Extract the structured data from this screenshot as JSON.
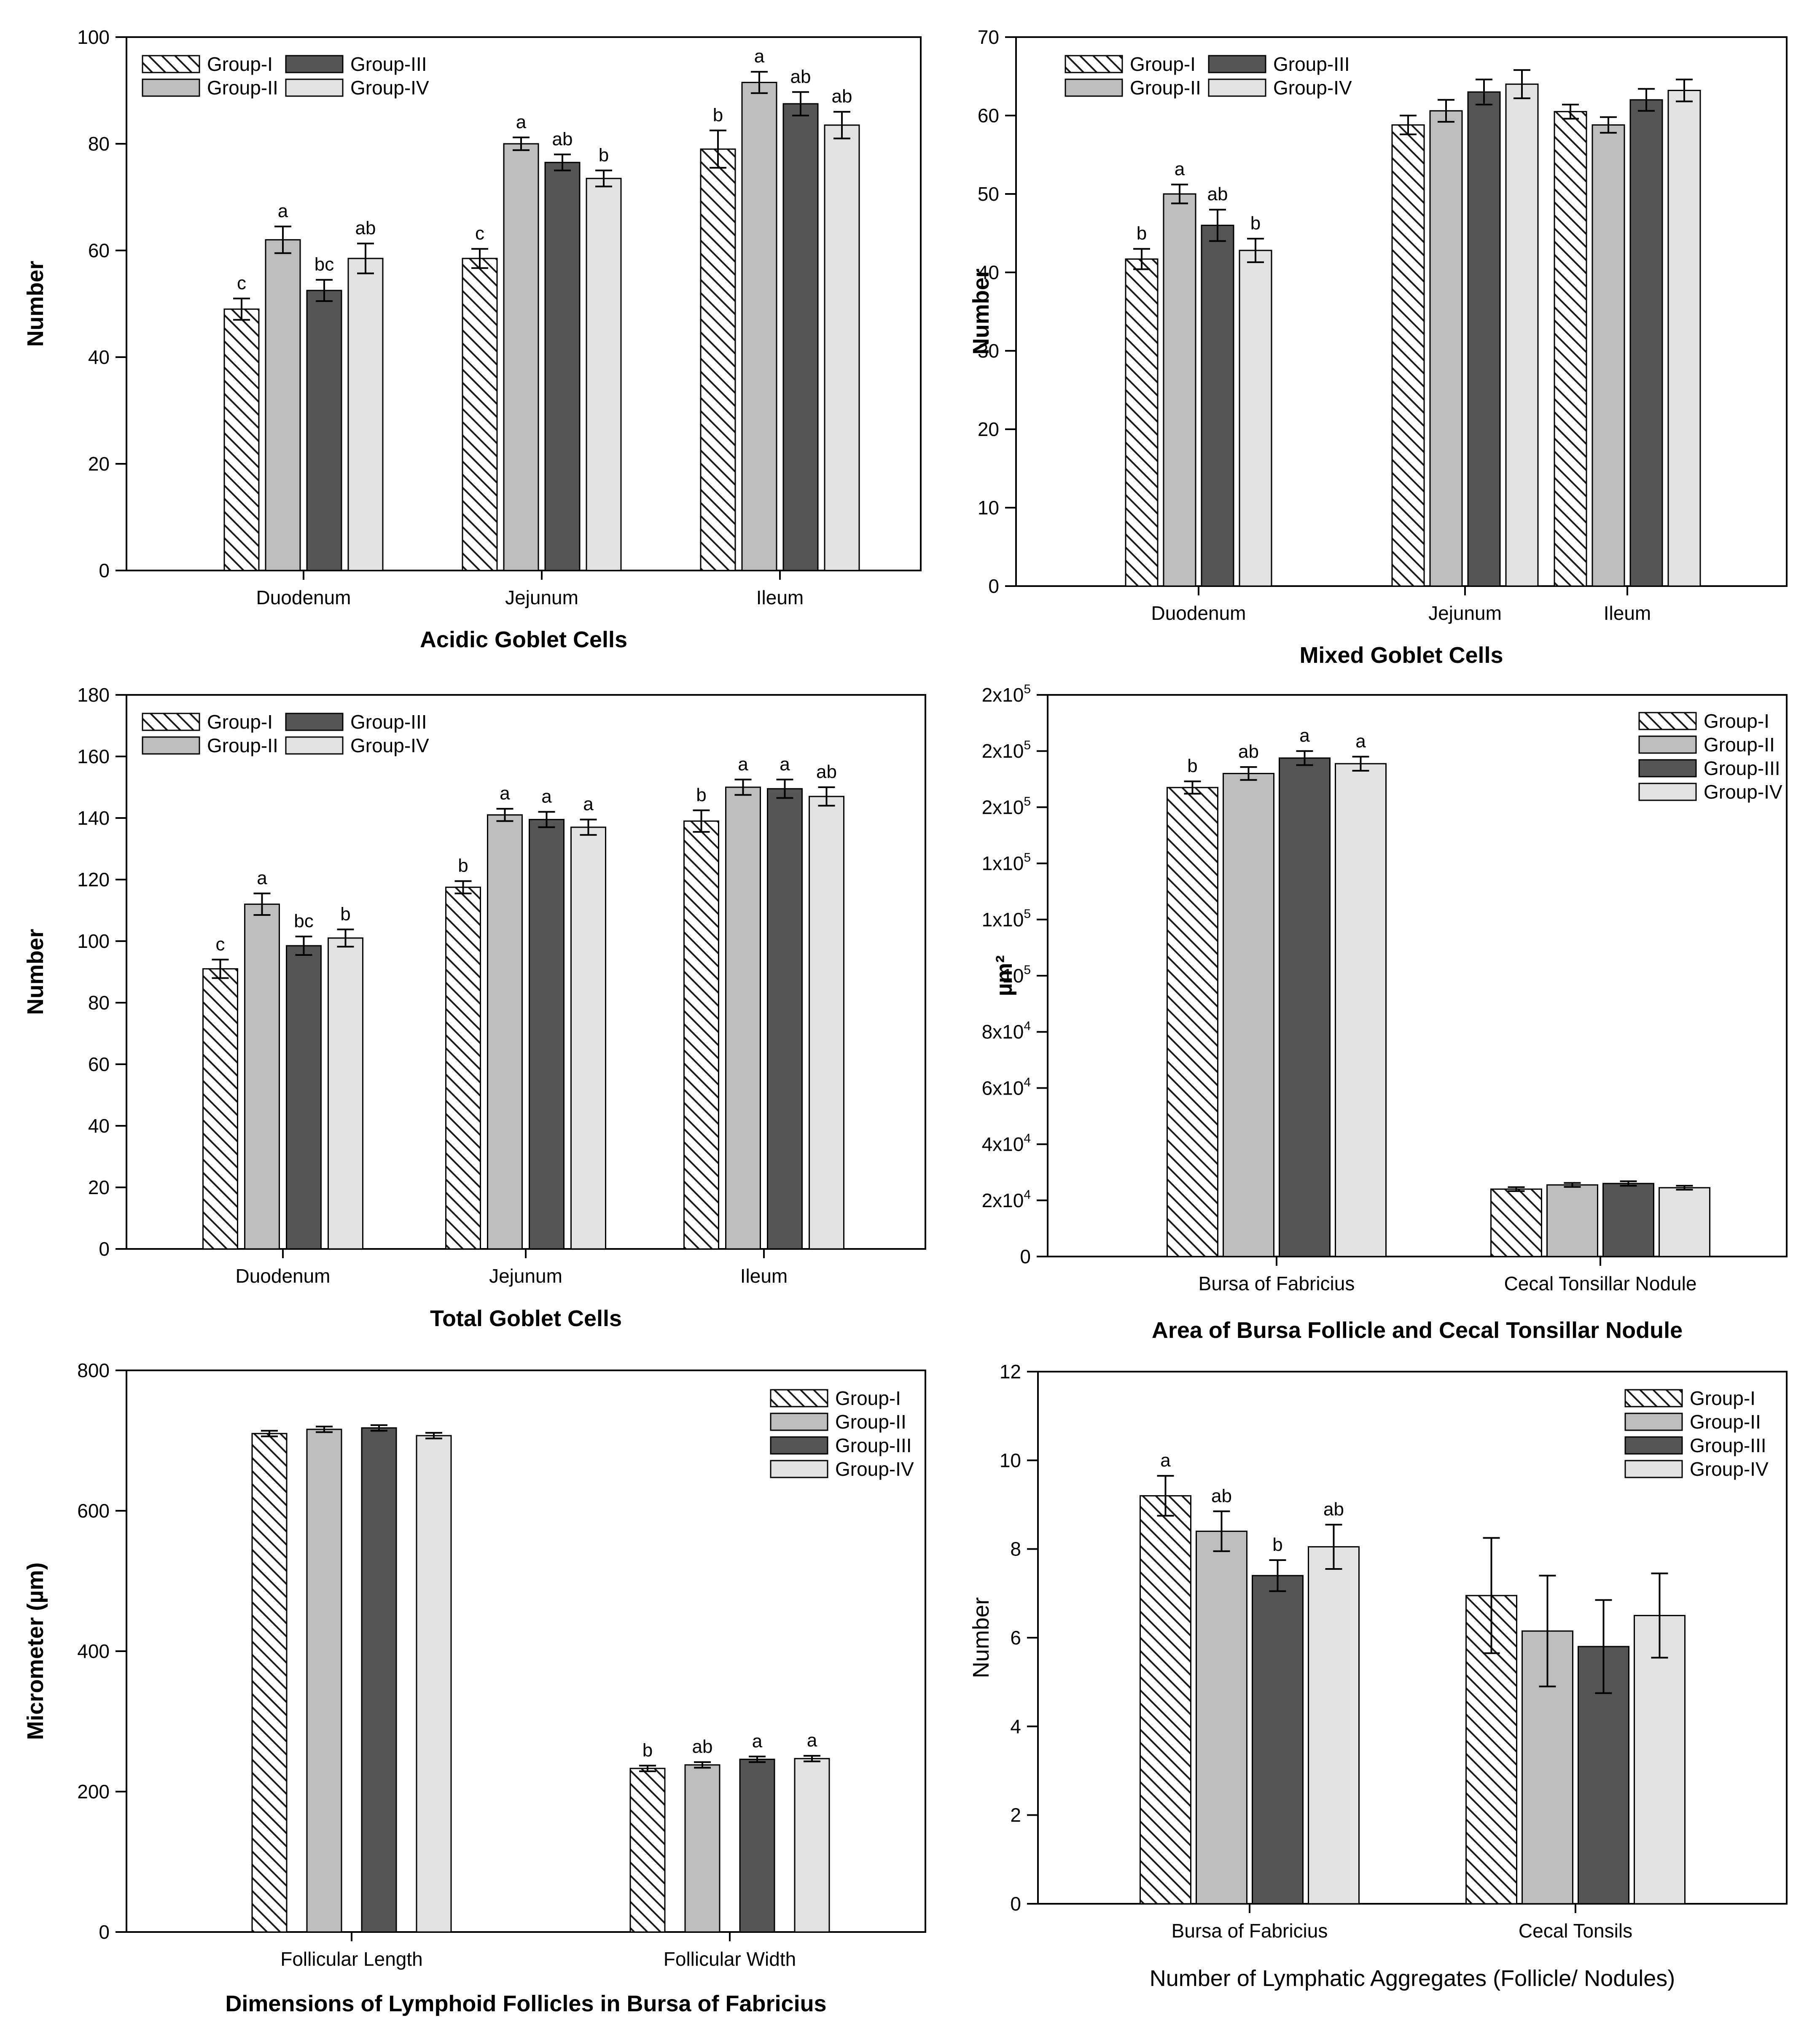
{
  "colors": {
    "group1_pattern_fg": "#1a1a1a",
    "group1_pattern_bg": "#ffffff",
    "group2": "#bdbdbd",
    "group3": "#555555",
    "group4": "#e2e2e2",
    "axis": "#000000"
  },
  "chart_data": [
    {
      "type": "bar",
      "title": "Acidic Goblet Cells",
      "ylabel": "Number",
      "xlabel": "",
      "ylim": [
        0,
        100
      ],
      "yticks": [
        "0",
        "20",
        "40",
        "60",
        "80",
        "100"
      ],
      "categories": [
        "Duodenum",
        "Jejunum",
        "Ileum"
      ],
      "legend": "top-left, two columns",
      "series": [
        {
          "name": "Group-I",
          "values": [
            49,
            58.5,
            79
          ],
          "errors": [
            2,
            1.8,
            3.5
          ],
          "letters": [
            "c",
            "c",
            "b"
          ]
        },
        {
          "name": "Group-II",
          "values": [
            62,
            80,
            91.5
          ],
          "errors": [
            2.5,
            1.2,
            2
          ],
          "letters": [
            "a",
            "a",
            "a"
          ]
        },
        {
          "name": "Group-III",
          "values": [
            52.5,
            76.5,
            87.5
          ],
          "errors": [
            2,
            1.5,
            2.2
          ],
          "letters": [
            "bc",
            "ab",
            "ab"
          ]
        },
        {
          "name": "Group-IV",
          "values": [
            58.5,
            73.5,
            83.5
          ],
          "errors": [
            2.8,
            1.5,
            2.5
          ],
          "letters": [
            "ab",
            "b",
            "ab"
          ]
        }
      ]
    },
    {
      "type": "bar",
      "title": "Mixed Goblet Cells",
      "ylabel": "Number",
      "xlabel": "",
      "ylim": [
        0,
        70
      ],
      "yticks": [
        "0",
        "10",
        "20",
        "30",
        "40",
        "50",
        "60",
        "70"
      ],
      "categories": [
        "Duodenum",
        "Jejunum",
        "Ileum"
      ],
      "legend": "top-left, two columns",
      "series": [
        {
          "name": "Group-I",
          "values": [
            41.7,
            58.8,
            60.5
          ],
          "errors": [
            1.3,
            1.2,
            0.9
          ],
          "letters": [
            "b",
            "",
            ""
          ]
        },
        {
          "name": "Group-II",
          "values": [
            50,
            60.6,
            58.8
          ],
          "errors": [
            1.2,
            1.4,
            1
          ],
          "letters": [
            "a",
            "",
            ""
          ]
        },
        {
          "name": "Group-III",
          "values": [
            46,
            63,
            62
          ],
          "errors": [
            2,
            1.6,
            1.4
          ],
          "letters": [
            "ab",
            "",
            ""
          ]
        },
        {
          "name": "Group-IV",
          "values": [
            42.8,
            64,
            63.2
          ],
          "errors": [
            1.5,
            1.8,
            1.4
          ],
          "letters": [
            "b",
            "",
            ""
          ]
        }
      ]
    },
    {
      "type": "bar",
      "title": "Total Goblet Cells",
      "ylabel": "Number",
      "xlabel": "",
      "ylim": [
        0,
        180
      ],
      "yticks": [
        "0",
        "20",
        "40",
        "60",
        "80",
        "100",
        "120",
        "140",
        "160",
        "180"
      ],
      "categories": [
        "Duodenum",
        "Jejunum",
        "Ileum"
      ],
      "legend": "top-left, two columns",
      "series": [
        {
          "name": "Group-I",
          "values": [
            91,
            117.5,
            139
          ],
          "errors": [
            3,
            2,
            3.5
          ],
          "letters": [
            "c",
            "b",
            "b"
          ]
        },
        {
          "name": "Group-II",
          "values": [
            112,
            141,
            150
          ],
          "errors": [
            3.5,
            2,
            2.5
          ],
          "letters": [
            "a",
            "a",
            "a"
          ]
        },
        {
          "name": "Group-III",
          "values": [
            98.5,
            139.5,
            149.5
          ],
          "errors": [
            3,
            2.5,
            3
          ],
          "letters": [
            "bc",
            "a",
            "a"
          ]
        },
        {
          "name": "Group-IV",
          "values": [
            101,
            137,
            147
          ],
          "errors": [
            2.8,
            2.5,
            3
          ],
          "letters": [
            "b",
            "a",
            "ab"
          ]
        }
      ]
    },
    {
      "type": "bar",
      "title": "Area of Bursa Follicle and Cecal Tonsillar Nodule",
      "ylabel": "µm²",
      "xlabel": "",
      "ylim": [
        0,
        200000
      ],
      "yticks": [
        {
          "value": 0,
          "base": "0",
          "exp": ""
        },
        {
          "value": 20000,
          "base": "2x10",
          "exp": "4"
        },
        {
          "value": 40000,
          "base": "4x10",
          "exp": "4"
        },
        {
          "value": 60000,
          "base": "6x10",
          "exp": "4"
        },
        {
          "value": 80000,
          "base": "8x10",
          "exp": "4"
        },
        {
          "value": 100000,
          "base": "10",
          "exp": "5"
        },
        {
          "value": 120000,
          "base": "1x10",
          "exp": "5"
        },
        {
          "value": 140000,
          "base": "1x10",
          "exp": "5"
        },
        {
          "value": 160000,
          "base": "2x10",
          "exp": "5"
        },
        {
          "value": 180000,
          "base": "2x10",
          "exp": "5"
        },
        {
          "value": 200000,
          "base": "2x10",
          "exp": "5"
        }
      ],
      "categories": [
        "Bursa of Fabricius",
        "Cecal Tonsillar Nodule"
      ],
      "legend": "top-right, one column",
      "series": [
        {
          "name": "Group-I",
          "values": [
            167000,
            24000
          ],
          "errors": [
            2200,
            700
          ],
          "letters": [
            "b",
            ""
          ]
        },
        {
          "name": "Group-II",
          "values": [
            172000,
            25500
          ],
          "errors": [
            2300,
            700
          ],
          "letters": [
            "ab",
            ""
          ]
        },
        {
          "name": "Group-III",
          "values": [
            177500,
            26000
          ],
          "errors": [
            2500,
            800
          ],
          "letters": [
            "a",
            ""
          ]
        },
        {
          "name": "Group-IV",
          "values": [
            175500,
            24500
          ],
          "errors": [
            2500,
            700
          ],
          "letters": [
            "a",
            ""
          ]
        }
      ]
    },
    {
      "type": "bar",
      "title": "Dimensions of Lymphoid Follicles in Bursa of Fabricius",
      "ylabel": "Micrometer (µm)",
      "xlabel": "",
      "ylim": [
        0,
        800
      ],
      "yticks": [
        "0",
        "200",
        "400",
        "600",
        "800"
      ],
      "categories": [
        "Follicular Length",
        "Follicular Width"
      ],
      "legend": "top-right, one column",
      "series": [
        {
          "name": "Group-I",
          "values": [
            710,
            233
          ],
          "errors": [
            4,
            4
          ],
          "letters": [
            "",
            "b"
          ]
        },
        {
          "name": "Group-II",
          "values": [
            716,
            238
          ],
          "errors": [
            4,
            4
          ],
          "letters": [
            "",
            "ab"
          ]
        },
        {
          "name": "Group-III",
          "values": [
            718,
            246
          ],
          "errors": [
            4,
            4
          ],
          "letters": [
            "",
            "a"
          ]
        },
        {
          "name": "Group-IV",
          "values": [
            707,
            247
          ],
          "errors": [
            4,
            4
          ],
          "letters": [
            "",
            "a"
          ]
        }
      ]
    },
    {
      "type": "bar",
      "title": "Number of Lymphatic Aggregates (Follicle/ Nodules)",
      "ylabel": "Number",
      "xlabel": "",
      "ylim": [
        0,
        12
      ],
      "yticks": [
        "0",
        "2",
        "4",
        "6",
        "8",
        "10",
        "12"
      ],
      "categories": [
        "Bursa of Fabricius",
        "Cecal Tonsils"
      ],
      "legend": "top-right, one column",
      "series": [
        {
          "name": "Group-I",
          "values": [
            9.2,
            6.95
          ],
          "errors": [
            0.45,
            1.3
          ],
          "letters": [
            "a",
            ""
          ]
        },
        {
          "name": "Group-II",
          "values": [
            8.4,
            6.15
          ],
          "errors": [
            0.45,
            1.25
          ],
          "letters": [
            "ab",
            ""
          ]
        },
        {
          "name": "Group-III",
          "values": [
            7.4,
            5.8
          ],
          "errors": [
            0.35,
            1.05
          ],
          "letters": [
            "b",
            ""
          ]
        },
        {
          "name": "Group-IV",
          "values": [
            8.05,
            6.5
          ],
          "errors": [
            0.5,
            0.95
          ],
          "letters": [
            "ab",
            ""
          ]
        }
      ]
    }
  ]
}
